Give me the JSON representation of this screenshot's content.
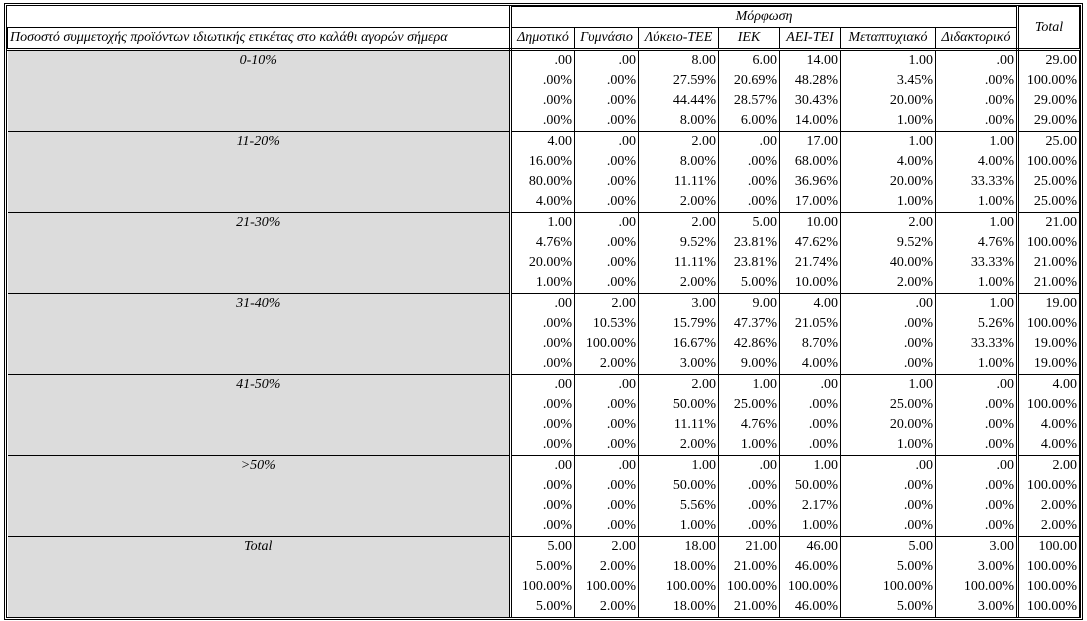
{
  "header": {
    "group_title": "Μόρφωση",
    "row_variable": "Ποσοστό συμμετοχής προϊόντων ιδιωτικής ετικέτας στο καλάθι αγορών σήμερα",
    "columns": [
      "Δημοτικό",
      "Γυμνάσιο",
      "Λύκειο-ΤΕΕ",
      "ΙΕΚ",
      "ΑΕΙ-ΤΕΙ",
      "Μεταπτυχιακό",
      "Διδακτορικό"
    ],
    "total": "Total"
  },
  "groups": [
    {
      "label": "0-10%",
      "rows": [
        [
          ".00",
          ".00",
          "8.00",
          "6.00",
          "14.00",
          "1.00",
          ".00",
          "29.00"
        ],
        [
          ".00%",
          ".00%",
          "27.59%",
          "20.69%",
          "48.28%",
          "3.45%",
          ".00%",
          "100.00%"
        ],
        [
          ".00%",
          ".00%",
          "44.44%",
          "28.57%",
          "30.43%",
          "20.00%",
          ".00%",
          "29.00%"
        ],
        [
          ".00%",
          ".00%",
          "8.00%",
          "6.00%",
          "14.00%",
          "1.00%",
          ".00%",
          "29.00%"
        ]
      ]
    },
    {
      "label": "11-20%",
      "rows": [
        [
          "4.00",
          ".00",
          "2.00",
          ".00",
          "17.00",
          "1.00",
          "1.00",
          "25.00"
        ],
        [
          "16.00%",
          ".00%",
          "8.00%",
          ".00%",
          "68.00%",
          "4.00%",
          "4.00%",
          "100.00%"
        ],
        [
          "80.00%",
          ".00%",
          "11.11%",
          ".00%",
          "36.96%",
          "20.00%",
          "33.33%",
          "25.00%"
        ],
        [
          "4.00%",
          ".00%",
          "2.00%",
          ".00%",
          "17.00%",
          "1.00%",
          "1.00%",
          "25.00%"
        ]
      ]
    },
    {
      "label": "21-30%",
      "rows": [
        [
          "1.00",
          ".00",
          "2.00",
          "5.00",
          "10.00",
          "2.00",
          "1.00",
          "21.00"
        ],
        [
          "4.76%",
          ".00%",
          "9.52%",
          "23.81%",
          "47.62%",
          "9.52%",
          "4.76%",
          "100.00%"
        ],
        [
          "20.00%",
          ".00%",
          "11.11%",
          "23.81%",
          "21.74%",
          "40.00%",
          "33.33%",
          "21.00%"
        ],
        [
          "1.00%",
          ".00%",
          "2.00%",
          "5.00%",
          "10.00%",
          "2.00%",
          "1.00%",
          "21.00%"
        ]
      ]
    },
    {
      "label": "31-40%",
      "rows": [
        [
          ".00",
          "2.00",
          "3.00",
          "9.00",
          "4.00",
          ".00",
          "1.00",
          "19.00"
        ],
        [
          ".00%",
          "10.53%",
          "15.79%",
          "47.37%",
          "21.05%",
          ".00%",
          "5.26%",
          "100.00%"
        ],
        [
          ".00%",
          "100.00%",
          "16.67%",
          "42.86%",
          "8.70%",
          ".00%",
          "33.33%",
          "19.00%"
        ],
        [
          ".00%",
          "2.00%",
          "3.00%",
          "9.00%",
          "4.00%",
          ".00%",
          "1.00%",
          "19.00%"
        ]
      ]
    },
    {
      "label": "41-50%",
      "rows": [
        [
          ".00",
          ".00",
          "2.00",
          "1.00",
          ".00",
          "1.00",
          ".00",
          "4.00"
        ],
        [
          ".00%",
          ".00%",
          "50.00%",
          "25.00%",
          ".00%",
          "25.00%",
          ".00%",
          "100.00%"
        ],
        [
          ".00%",
          ".00%",
          "11.11%",
          "4.76%",
          ".00%",
          "20.00%",
          ".00%",
          "4.00%"
        ],
        [
          ".00%",
          ".00%",
          "2.00%",
          "1.00%",
          ".00%",
          "1.00%",
          ".00%",
          "4.00%"
        ]
      ]
    },
    {
      "label": ">50%",
      "rows": [
        [
          ".00",
          ".00",
          "1.00",
          ".00",
          "1.00",
          ".00",
          ".00",
          "2.00"
        ],
        [
          ".00%",
          ".00%",
          "50.00%",
          ".00%",
          "50.00%",
          ".00%",
          ".00%",
          "100.00%"
        ],
        [
          ".00%",
          ".00%",
          "5.56%",
          ".00%",
          "2.17%",
          ".00%",
          ".00%",
          "2.00%"
        ],
        [
          ".00%",
          ".00%",
          "1.00%",
          ".00%",
          "1.00%",
          ".00%",
          ".00%",
          "2.00%"
        ]
      ]
    },
    {
      "label": "Total",
      "rows": [
        [
          "5.00",
          "2.00",
          "18.00",
          "21.00",
          "46.00",
          "5.00",
          "3.00",
          "100.00"
        ],
        [
          "5.00%",
          "2.00%",
          "18.00%",
          "21.00%",
          "46.00%",
          "5.00%",
          "3.00%",
          "100.00%"
        ],
        [
          "100.00%",
          "100.00%",
          "100.00%",
          "100.00%",
          "100.00%",
          "100.00%",
          "100.00%",
          "100.00%"
        ],
        [
          "5.00%",
          "2.00%",
          "18.00%",
          "21.00%",
          "46.00%",
          "5.00%",
          "3.00%",
          "100.00%"
        ]
      ]
    }
  ]
}
